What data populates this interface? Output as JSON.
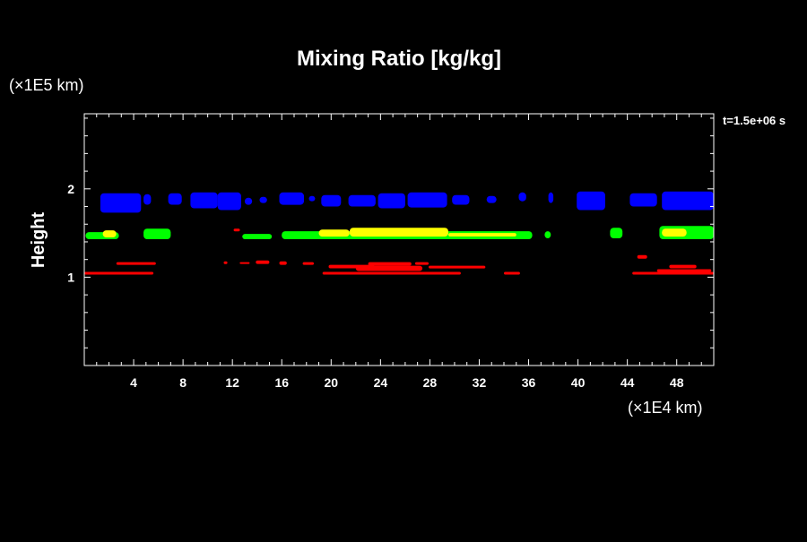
{
  "chart_data": {
    "type": "heatmap",
    "title": "Mixing Ratio [kg/kg]",
    "ylabel": "Height",
    "y_unit_note": "(×1E5 km)",
    "x_unit_note": "(×1E4 km)",
    "time_label": "t=1.5e+06 s",
    "xlim": [
      0,
      51
    ],
    "ylim": [
      0,
      2.85
    ],
    "x_ticks": [
      4,
      8,
      12,
      16,
      20,
      24,
      28,
      32,
      36,
      40,
      44,
      48
    ],
    "y_ticks": [
      1,
      2
    ],
    "colors": {
      "background": "#000000",
      "foreground": "#ffffff",
      "blue": "#0000ff",
      "green": "#00ff00",
      "yellow": "#ffff00",
      "red": "#ff0000"
    },
    "layers": [
      {
        "color_key": "blue",
        "regions": [
          {
            "x": [
              1.3,
              4.6
            ],
            "y": [
              1.73,
              1.95
            ]
          },
          {
            "x": [
              4.8,
              5.4
            ],
            "y": [
              1.82,
              1.94
            ]
          },
          {
            "x": [
              6.8,
              7.9
            ],
            "y": [
              1.82,
              1.95
            ]
          },
          {
            "x": [
              8.6,
              10.8
            ],
            "y": [
              1.78,
              1.96
            ]
          },
          {
            "x": [
              10.8,
              12.7
            ],
            "y": [
              1.76,
              1.96
            ]
          },
          {
            "x": [
              13.0,
              13.6
            ],
            "y": [
              1.82,
              1.9
            ]
          },
          {
            "x": [
              14.2,
              14.8
            ],
            "y": [
              1.84,
              1.91
            ]
          },
          {
            "x": [
              15.8,
              17.8
            ],
            "y": [
              1.82,
              1.96
            ]
          },
          {
            "x": [
              18.2,
              18.7
            ],
            "y": [
              1.86,
              1.92
            ]
          },
          {
            "x": [
              19.2,
              20.8
            ],
            "y": [
              1.8,
              1.93
            ]
          },
          {
            "x": [
              21.4,
              23.6
            ],
            "y": [
              1.8,
              1.93
            ]
          },
          {
            "x": [
              23.8,
              26.0
            ],
            "y": [
              1.78,
              1.95
            ]
          },
          {
            "x": [
              26.2,
              29.4
            ],
            "y": [
              1.79,
              1.96
            ]
          },
          {
            "x": [
              29.8,
              31.2
            ],
            "y": [
              1.82,
              1.93
            ]
          },
          {
            "x": [
              32.6,
              33.4
            ],
            "y": [
              1.84,
              1.92
            ]
          },
          {
            "x": [
              35.2,
              35.8
            ],
            "y": [
              1.86,
              1.96
            ]
          },
          {
            "x": [
              37.6,
              38.0
            ],
            "y": [
              1.84,
              1.96
            ]
          },
          {
            "x": [
              39.9,
              42.2
            ],
            "y": [
              1.76,
              1.97
            ]
          },
          {
            "x": [
              44.2,
              46.4
            ],
            "y": [
              1.8,
              1.95
            ]
          },
          {
            "x": [
              46.8,
              51.0
            ],
            "y": [
              1.76,
              1.97
            ]
          }
        ]
      },
      {
        "color_key": "green",
        "regions": [
          {
            "x": [
              0.1,
              2.8
            ],
            "y": [
              1.43,
              1.51
            ]
          },
          {
            "x": [
              4.8,
              7.0
            ],
            "y": [
              1.43,
              1.55
            ]
          },
          {
            "x": [
              12.8,
              15.2
            ],
            "y": [
              1.43,
              1.49
            ]
          },
          {
            "x": [
              16.0,
              36.3
            ],
            "y": [
              1.43,
              1.52
            ]
          },
          {
            "x": [
              37.3,
              37.8
            ],
            "y": [
              1.44,
              1.52
            ]
          },
          {
            "x": [
              42.6,
              43.6
            ],
            "y": [
              1.44,
              1.56
            ]
          },
          {
            "x": [
              46.6,
              51.0
            ],
            "y": [
              1.43,
              1.58
            ]
          }
        ]
      },
      {
        "color_key": "yellow",
        "regions": [
          {
            "x": [
              1.5,
              2.6
            ],
            "y": [
              1.45,
              1.53
            ]
          },
          {
            "x": [
              19.0,
              21.5
            ],
            "y": [
              1.46,
              1.54
            ]
          },
          {
            "x": [
              21.5,
              29.5
            ],
            "y": [
              1.46,
              1.56
            ]
          },
          {
            "x": [
              29.5,
              35.0
            ],
            "y": [
              1.46,
              1.5
            ]
          },
          {
            "x": [
              46.8,
              48.8
            ],
            "y": [
              1.46,
              1.55
            ]
          }
        ]
      },
      {
        "color_key": "red",
        "regions": [
          {
            "x": [
              0.0,
              5.6
            ],
            "y": [
              1.03,
              1.06
            ]
          },
          {
            "x": [
              2.6,
              5.8
            ],
            "y": [
              1.14,
              1.17
            ]
          },
          {
            "x": [
              11.3,
              11.6
            ],
            "y": [
              1.15,
              1.18
            ]
          },
          {
            "x": [
              12.6,
              13.4
            ],
            "y": [
              1.15,
              1.17
            ]
          },
          {
            "x": [
              13.9,
              15.0
            ],
            "y": [
              1.15,
              1.19
            ]
          },
          {
            "x": [
              15.8,
              16.4
            ],
            "y": [
              1.14,
              1.18
            ]
          },
          {
            "x": [
              17.7,
              18.6
            ],
            "y": [
              1.14,
              1.17
            ]
          },
          {
            "x": [
              19.3,
              30.5
            ],
            "y": [
              1.03,
              1.06
            ]
          },
          {
            "x": [
              19.8,
              23.5
            ],
            "y": [
              1.1,
              1.14
            ]
          },
          {
            "x": [
              22.0,
              27.4
            ],
            "y": [
              1.07,
              1.13
            ]
          },
          {
            "x": [
              23.0,
              26.5
            ],
            "y": [
              1.13,
              1.17
            ]
          },
          {
            "x": [
              26.8,
              27.9
            ],
            "y": [
              1.14,
              1.17
            ]
          },
          {
            "x": [
              27.9,
              32.5
            ],
            "y": [
              1.1,
              1.13
            ]
          },
          {
            "x": [
              34.0,
              35.3
            ],
            "y": [
              1.03,
              1.06
            ]
          },
          {
            "x": [
              44.4,
              51.0
            ],
            "y": [
              1.03,
              1.06
            ]
          },
          {
            "x": [
              46.4,
              50.8
            ],
            "y": [
              1.06,
              1.09
            ]
          },
          {
            "x": [
              47.4,
              49.6
            ],
            "y": [
              1.1,
              1.14
            ]
          },
          {
            "x": [
              44.8,
              45.6
            ],
            "y": [
              1.21,
              1.25
            ]
          },
          {
            "x": [
              12.1,
              12.6
            ],
            "y": [
              1.52,
              1.55
            ]
          }
        ]
      }
    ]
  }
}
